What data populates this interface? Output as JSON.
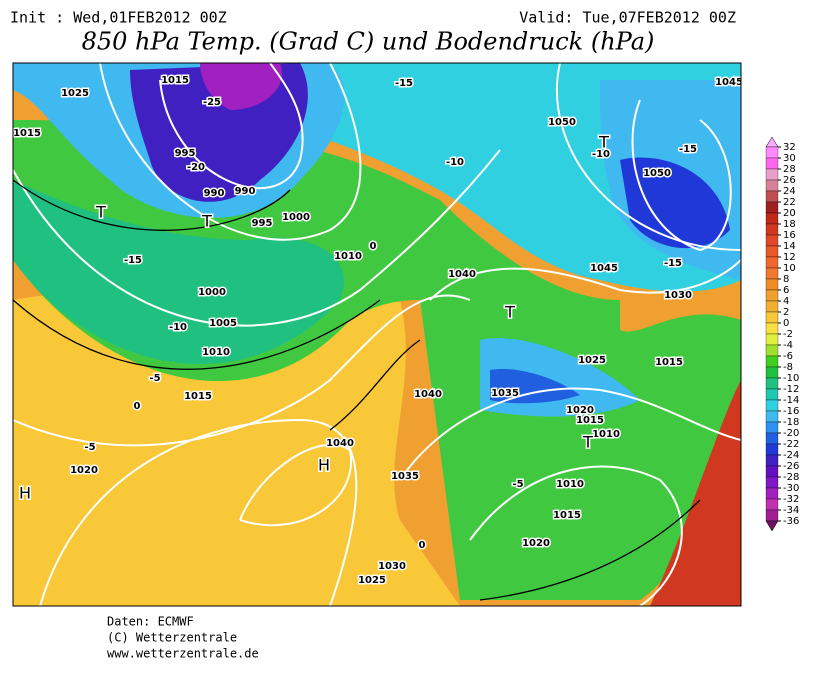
{
  "header": {
    "init": "Init : Wed,01FEB2012 00Z",
    "valid": "Valid: Tue,07FEB2012 00Z",
    "title": "850 hPa Temp. (Grad C) und Bodendruck (hPa)"
  },
  "colorbar": {
    "ticks": [
      32,
      30,
      28,
      26,
      24,
      22,
      20,
      18,
      16,
      14,
      12,
      10,
      8,
      6,
      4,
      2,
      0,
      -2,
      -4,
      -6,
      -8,
      -10,
      -12,
      -14,
      -16,
      -18,
      -20,
      -22,
      -24,
      -26,
      -28,
      -30,
      -32,
      -34,
      -36
    ],
    "colors": [
      "#ffaaff",
      "#ff88ff",
      "#ff66f0",
      "#e8a0c8",
      "#d88098",
      "#c05050",
      "#a02020",
      "#c02818",
      "#d03820",
      "#e04828",
      "#e85828",
      "#f06830",
      "#f07830",
      "#f08c28",
      "#f0a030",
      "#f0b030",
      "#f8c838",
      "#f8e040",
      "#e0f040",
      "#a0e030",
      "#40d020",
      "#20c040",
      "#20c080",
      "#20c8b0",
      "#30d0e0",
      "#40b8f0",
      "#3090f0",
      "#2060e0",
      "#2038d8",
      "#4020c0",
      "#6010c0",
      "#8018c8",
      "#a020c0",
      "#c030b0",
      "#a02090",
      "#701060"
    ]
  },
  "map_labels": [
    "1015",
    "1025",
    "1015",
    "995",
    "990",
    "990",
    "995",
    "1000",
    "1000",
    "1005",
    "1010",
    "1015",
    "1020",
    "1040",
    "1040",
    "1040",
    "1035",
    "1030",
    "1025",
    "1045",
    "1050",
    "1050",
    "1045",
    "1030",
    "1035",
    "1025",
    "1020",
    "1015",
    "1010",
    "1015",
    "1010",
    "1015",
    "1020",
    "1010",
    "-15",
    "-10",
    "-5",
    "0",
    "-5",
    "0",
    "-15",
    "-10",
    "-15",
    "-10",
    "-15",
    "-5",
    "0",
    "H",
    "H",
    "T",
    "T",
    "T",
    "T",
    "T",
    "-20",
    "-25"
  ],
  "footer": {
    "source": "Daten: ECMWF",
    "copyright": "(C) Wetterzentrale",
    "url": "www.wetterzentrale.de"
  }
}
